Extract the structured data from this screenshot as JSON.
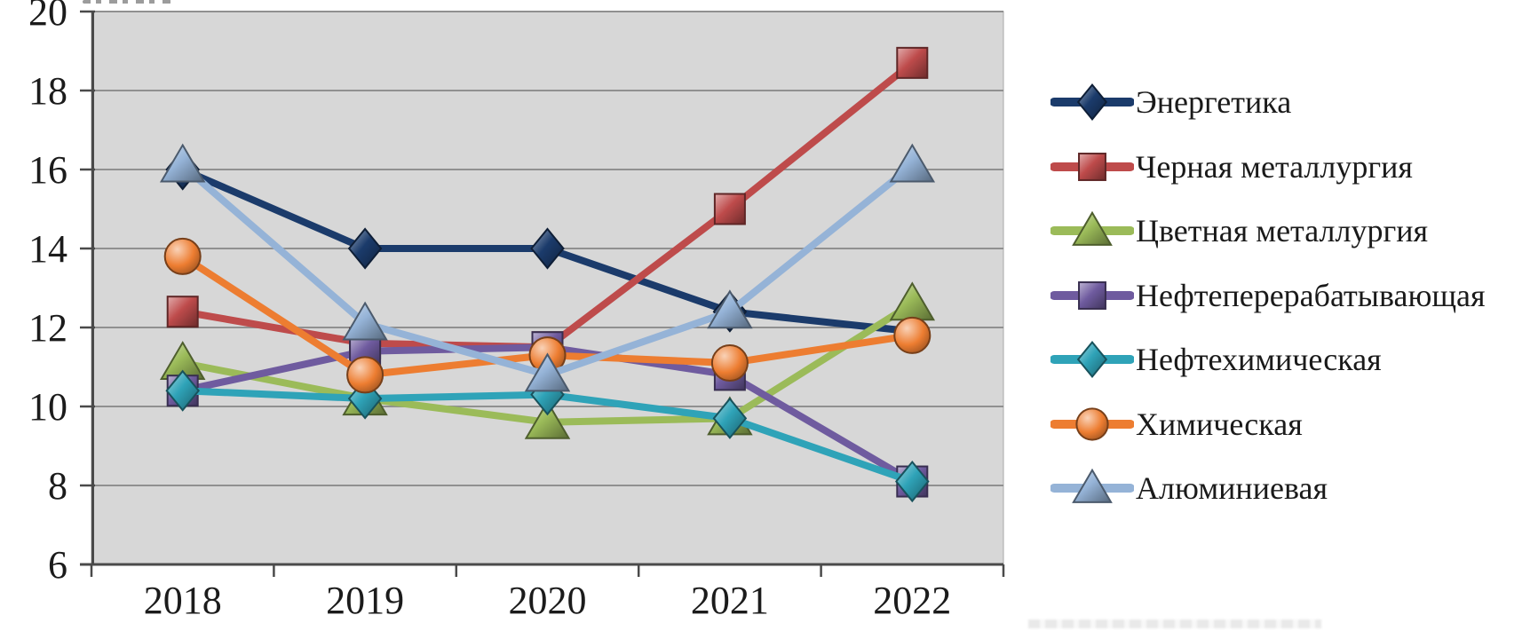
{
  "chart_data": {
    "type": "line",
    "title": "",
    "xlabel": "",
    "ylabel": "",
    "categories": [
      "2018",
      "2019",
      "2020",
      "2021",
      "2022"
    ],
    "series": [
      {
        "name": "Энергетика",
        "color": "#1b3b6b",
        "marker": "diamond",
        "values": [
          16.0,
          14.0,
          14.0,
          12.4,
          11.9
        ]
      },
      {
        "name": "Черная металлургия",
        "color": "#be4b4b",
        "marker": "square",
        "values": [
          12.4,
          11.6,
          11.5,
          15.0,
          18.7
        ]
      },
      {
        "name": "Цветная металлургия",
        "color": "#9bbb59",
        "marker": "triangle",
        "values": [
          11.1,
          10.2,
          9.6,
          9.7,
          12.6
        ]
      },
      {
        "name": "Нефтеперерабатывающая",
        "color": "#6f5b9f",
        "marker": "square",
        "values": [
          10.4,
          11.4,
          11.5,
          10.8,
          8.1
        ]
      },
      {
        "name": "Нефтехимическая",
        "color": "#2fa3b8",
        "marker": "diamond",
        "values": [
          10.4,
          10.2,
          10.3,
          9.7,
          8.1
        ]
      },
      {
        "name": "Химическая",
        "color": "#ed7d31",
        "marker": "circle",
        "values": [
          13.8,
          10.8,
          11.3,
          11.1,
          11.8
        ]
      },
      {
        "name": "Алюминиевая",
        "color": "#95b3d7",
        "marker": "triangle",
        "values": [
          16.1,
          12.1,
          10.8,
          12.4,
          16.1
        ]
      }
    ],
    "ylim": [
      6,
      20
    ],
    "ytick_step": 2,
    "yticks": [
      "6",
      "8",
      "10",
      "12",
      "14",
      "16",
      "18",
      "20"
    ],
    "grid": true,
    "legend_position": "right",
    "colors": {
      "plot_background": "#d7d7d7",
      "gridline": "#909090",
      "axis": "#4a4a4a",
      "text": "#1b1b1b"
    }
  }
}
